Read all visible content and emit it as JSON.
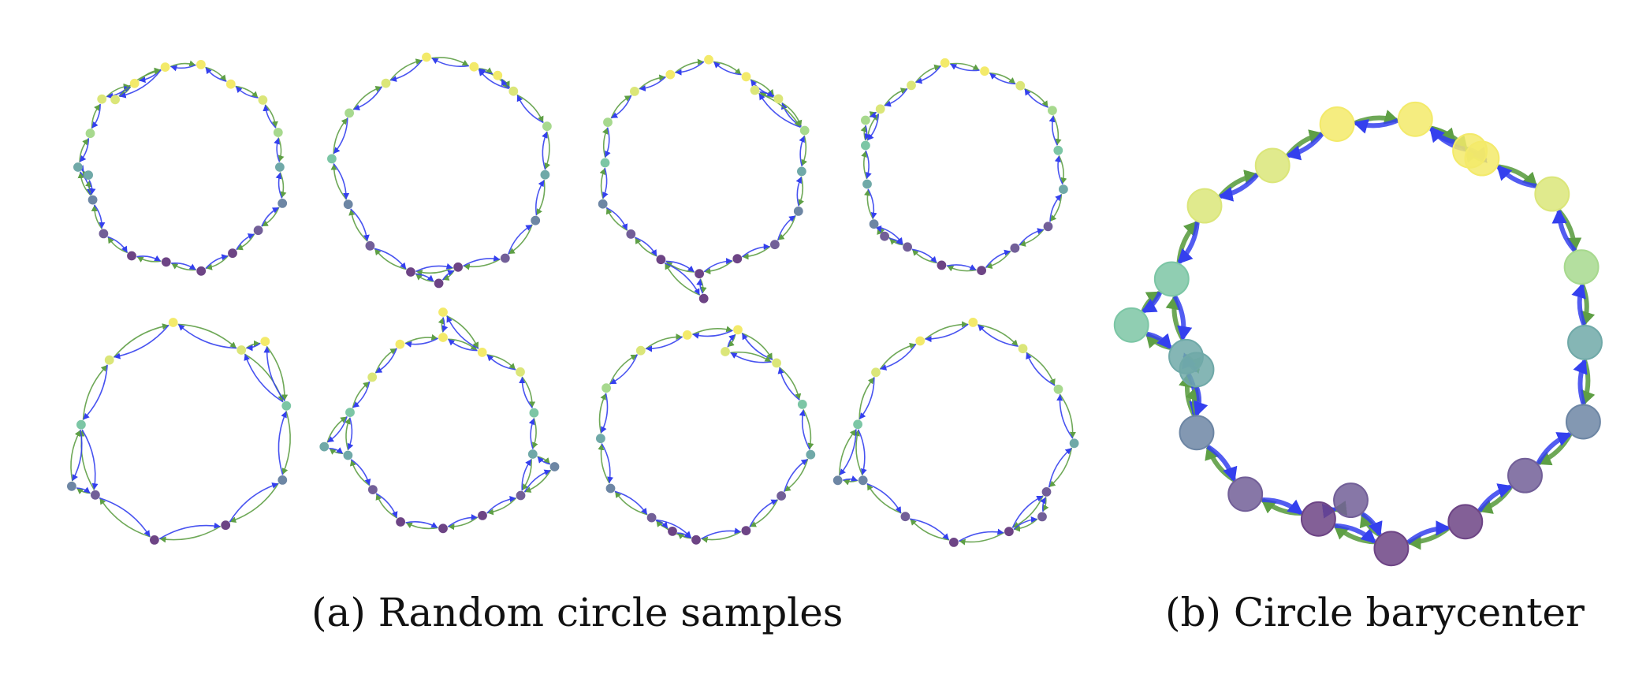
{
  "captions": {
    "a": "(a) Random circle samples",
    "b": "(b) Circle barycenter"
  },
  "colors": {
    "edge_green": "#5e9f45",
    "edge_blue": "#3440ee",
    "node_palette": [
      "#f3ea6a",
      "#dbe679",
      "#a7d98e",
      "#7cc6a5",
      "#70a9a8",
      "#6d86a4",
      "#725f98",
      "#6d4485"
    ]
  },
  "panels": [
    {
      "id": "sample-1",
      "nodes": 18,
      "extra": [
        [
          16,
          260
        ],
        [
          2,
          140
        ]
      ]
    },
    {
      "id": "sample-2",
      "nodes": 14,
      "extra": [
        [
          3,
          20
        ],
        [
          9,
          140
        ]
      ]
    },
    {
      "id": "sample-3",
      "nodes": 16,
      "extra": [
        [
          11,
          80
        ],
        [
          5,
          200
        ]
      ]
    },
    {
      "id": "sample-4",
      "nodes": 16,
      "extra": [
        [
          15,
          270
        ],
        [
          12,
          205
        ]
      ]
    },
    {
      "id": "sample-5",
      "nodes": 9,
      "extra": [
        [
          7,
          200
        ],
        [
          2,
          340
        ]
      ]
    },
    {
      "id": "sample-6",
      "nodes": 14,
      "extra": [
        [
          0,
          270
        ],
        [
          4,
          30
        ],
        [
          10,
          200
        ]
      ]
    },
    {
      "id": "sample-7",
      "nodes": 13,
      "extra": [
        [
          9,
          200
        ],
        [
          3,
          120
        ]
      ]
    },
    {
      "id": "sample-8",
      "nodes": 12,
      "extra": [
        [
          10,
          180
        ],
        [
          6,
          100
        ]
      ]
    },
    {
      "id": "barycenter",
      "nodes": 17,
      "extra": [
        [
          14,
          270
        ],
        [
          15,
          210
        ],
        [
          3,
          30
        ],
        [
          11,
          230
        ]
      ]
    }
  ]
}
